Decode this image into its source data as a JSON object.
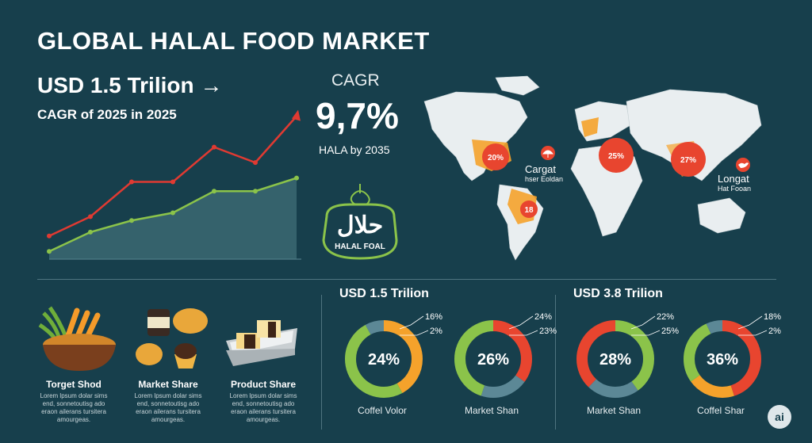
{
  "header": {
    "title": "GLOBAL HALAL FOOD MARKET",
    "headline": "USD 1.5 Trilion →",
    "subhead": "CAGR of 2025 in 2025"
  },
  "cagr": {
    "label": "CAGR",
    "value": "9,7%",
    "note": "HALA by 2035"
  },
  "logo": {
    "script": "حلال",
    "text": "HALAL FOAL"
  },
  "map": {
    "markers": [
      {
        "label": "20%",
        "color": "#e8452f"
      },
      {
        "label": "18",
        "color": "#e8452f"
      },
      {
        "label": "25%",
        "color": "#e8452f"
      },
      {
        "label": "27%",
        "color": "#e8452f"
      }
    ],
    "labels": [
      {
        "title": "Cargat",
        "sub": "hser Eoldan"
      },
      {
        "title": "Longat",
        "sub": "Hat Fooan"
      }
    ]
  },
  "products": [
    {
      "title": "Torget Shod",
      "desc": "Lorem lpsum dolar sims end, sonnetoutisg ado eraon ailerans tursitera amourgeas."
    },
    {
      "title": "Market Share",
      "desc": "Lorem lpsum dolar sims end, sonnetoutisg ado eraon ailerans tursitera amourgeas."
    },
    {
      "title": "Product Share",
      "desc": "Lorem lpsum dolar sims end, sonnetoutisg ado eraon ailerans tursitera amourgeas."
    }
  ],
  "groups": [
    {
      "title": "USD 1.5 Trilion"
    },
    {
      "title": "USD 3.8 Trilion"
    }
  ],
  "badge": "ai",
  "chart_data": [
    {
      "type": "line",
      "title": "",
      "x": [
        0,
        1,
        2,
        3,
        4,
        5,
        6
      ],
      "series": [
        {
          "values": [
            30,
            55,
            100,
            100,
            145,
            125,
            185
          ],
          "color": "#e03a32"
        },
        {
          "values": [
            10,
            35,
            50,
            60,
            88,
            88,
            105
          ],
          "color": "#8bc34a",
          "area": true
        }
      ],
      "ylim": [
        0,
        200
      ],
      "grid": false
    },
    {
      "type": "pie",
      "center_label": "24%",
      "caption": "Coffel Volor",
      "slices": [
        {
          "value": 42,
          "color": "#f5a22b"
        },
        {
          "value": 50,
          "color": "#8bc34a"
        },
        {
          "value": 8,
          "color": "#5c8896"
        }
      ],
      "callouts": [
        "16%",
        "2%"
      ]
    },
    {
      "type": "pie",
      "center_label": "26%",
      "caption": "Market Shan",
      "slices": [
        {
          "value": 35,
          "color": "#e8452f"
        },
        {
          "value": 20,
          "color": "#5c8896"
        },
        {
          "value": 45,
          "color": "#8bc34a"
        }
      ],
      "callouts": [
        "24%",
        "23%"
      ]
    },
    {
      "type": "pie",
      "center_label": "28%",
      "caption": "Market Shan",
      "slices": [
        {
          "value": 40,
          "color": "#8bc34a"
        },
        {
          "value": 22,
          "color": "#5c8896"
        },
        {
          "value": 38,
          "color": "#e8452f"
        }
      ],
      "callouts": [
        "22%",
        "25%"
      ]
    },
    {
      "type": "pie",
      "center_label": "36%",
      "caption": "Coffel Shar",
      "slices": [
        {
          "value": 45,
          "color": "#e8452f"
        },
        {
          "value": 20,
          "color": "#f5a22b"
        },
        {
          "value": 28,
          "color": "#8bc34a"
        },
        {
          "value": 7,
          "color": "#5c8896"
        }
      ],
      "callouts": [
        "18%",
        "2%"
      ]
    }
  ]
}
